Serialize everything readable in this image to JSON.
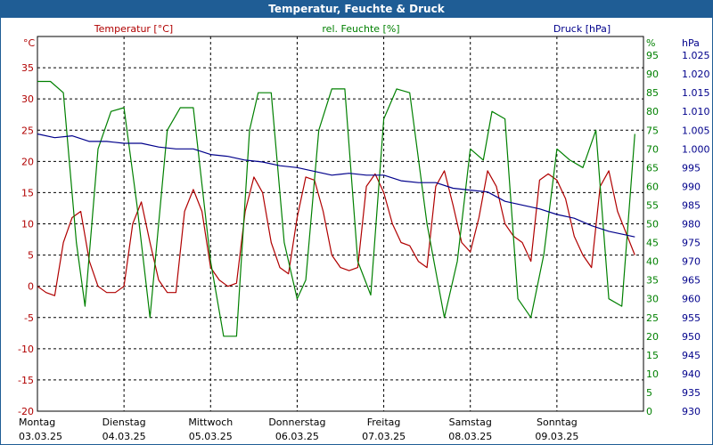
{
  "chart_data": {
    "type": "line",
    "title": "Temperatur, Feuchte & Druck",
    "grid": true,
    "legend": "top",
    "x_day_labels": [
      {
        "day": "Montag",
        "date": "03.03.25"
      },
      {
        "day": "Dienstag",
        "date": "04.03.25"
      },
      {
        "day": "Mittwoch",
        "date": "05.03.25"
      },
      {
        "day": "Donnerstag",
        "date": "06.03.25"
      },
      {
        "day": "Freitag",
        "date": "07.03.25"
      },
      {
        "day": "Samstag",
        "date": "08.03.25"
      },
      {
        "day": "Sonntag",
        "date": "09.03.25"
      }
    ],
    "axes": {
      "temperature": {
        "label": "Temperatur [°C]",
        "unit": "°C",
        "color": "#b00000",
        "ylim": [
          -20,
          40
        ],
        "ticks": [
          "-20",
          "-15",
          "-10",
          "-5",
          "0",
          "5",
          "10",
          "15",
          "20",
          "25",
          "30",
          "35"
        ]
      },
      "humidity": {
        "label": "rel. Feuchte [%]",
        "unit": "%",
        "color": "#008000",
        "ylim": [
          0,
          100
        ],
        "ticks": [
          "0",
          "5",
          "10",
          "15",
          "20",
          "25",
          "30",
          "35",
          "40",
          "45",
          "50",
          "55",
          "60",
          "65",
          "70",
          "75",
          "80",
          "85",
          "90",
          "95"
        ]
      },
      "pressure": {
        "label": "Druck [hPa]",
        "unit": "hPa",
        "color": "#00008b",
        "ylim": [
          930,
          1030
        ],
        "ticks": [
          "930",
          "935",
          "940",
          "945",
          "950",
          "955",
          "960",
          "965",
          "970",
          "975",
          "980",
          "985",
          "990",
          "995",
          "1.000",
          "1.005",
          "1.010",
          "1.015",
          "1.020",
          "1.025"
        ]
      }
    },
    "series": [
      {
        "name": "Temperatur [°C]",
        "axis": "temperature",
        "color": "#b00000",
        "x": [
          0,
          0.1,
          0.2,
          0.3,
          0.4,
          0.5,
          0.6,
          0.7,
          0.8,
          0.9,
          1,
          1.1,
          1.2,
          1.3,
          1.4,
          1.5,
          1.6,
          1.7,
          1.8,
          1.9,
          2,
          2.1,
          2.2,
          2.3,
          2.4,
          2.5,
          2.6,
          2.7,
          2.8,
          2.9,
          3,
          3.1,
          3.2,
          3.3,
          3.4,
          3.5,
          3.6,
          3.7,
          3.8,
          3.9,
          4,
          4.1,
          4.2,
          4.3,
          4.4,
          4.5,
          4.6,
          4.7,
          4.8,
          4.9,
          5,
          5.1,
          5.2,
          5.3,
          5.4,
          5.5,
          5.6,
          5.7,
          5.8,
          5.9,
          6,
          6.1,
          6.2,
          6.3,
          6.4,
          6.5,
          6.6,
          6.7,
          6.9
        ],
        "values": [
          0,
          -1,
          -1.5,
          7,
          11,
          12,
          4,
          0,
          -1,
          -1,
          0,
          10,
          13.5,
          7,
          1,
          -1,
          -1,
          12,
          15.5,
          12,
          3,
          1,
          0,
          0.5,
          12,
          17.5,
          15,
          7,
          3,
          2,
          11,
          17.5,
          17,
          12,
          5,
          3,
          2.5,
          3,
          16,
          18,
          15,
          10,
          7,
          6.5,
          4,
          3,
          16,
          18.5,
          13,
          7,
          5.5,
          11,
          18.5,
          16,
          10,
          8,
          7,
          4,
          17,
          18,
          17,
          14,
          8,
          5,
          3,
          16,
          18.5,
          12,
          5
        ]
      },
      {
        "name": "rel. Feuchte [%]",
        "axis": "humidity",
        "color": "#008000",
        "x": [
          0,
          0.15,
          0.3,
          0.45,
          0.55,
          0.7,
          0.85,
          1,
          1.15,
          1.3,
          1.5,
          1.65,
          1.8,
          2,
          2.15,
          2.3,
          2.45,
          2.55,
          2.7,
          2.85,
          3,
          3.1,
          3.25,
          3.4,
          3.55,
          3.7,
          3.85,
          4,
          4.15,
          4.3,
          4.5,
          4.7,
          4.85,
          5,
          5.15,
          5.25,
          5.4,
          5.55,
          5.7,
          5.85,
          6,
          6.15,
          6.3,
          6.45,
          6.6,
          6.75,
          6.9
        ],
        "values": [
          88,
          88,
          85,
          45,
          28,
          70,
          80,
          81,
          55,
          25,
          75,
          81,
          81,
          40,
          20,
          20,
          75,
          85,
          85,
          45,
          30,
          35,
          75,
          86,
          86,
          40,
          31,
          78,
          86,
          85,
          50,
          25,
          40,
          70,
          67,
          80,
          78,
          30,
          25,
          42,
          70,
          67,
          65,
          75,
          30,
          28,
          74
        ]
      },
      {
        "name": "Druck [hPa]",
        "axis": "pressure",
        "color": "#00008b",
        "x": [
          0,
          0.2,
          0.4,
          0.6,
          0.8,
          1,
          1.2,
          1.4,
          1.6,
          1.8,
          2,
          2.2,
          2.4,
          2.6,
          2.8,
          3,
          3.2,
          3.4,
          3.6,
          3.8,
          4,
          4.2,
          4.4,
          4.6,
          4.8,
          5,
          5.2,
          5.4,
          5.6,
          5.8,
          6,
          6.2,
          6.4,
          6.6,
          6.8,
          6.9
        ],
        "values": [
          1004,
          1003,
          1003.5,
          1002,
          1002,
          1001.5,
          1001.5,
          1000.5,
          1000,
          1000,
          998.5,
          998,
          997,
          996.5,
          995.5,
          995,
          994,
          993,
          993.5,
          993,
          993,
          991.5,
          991,
          991,
          989.5,
          989,
          988.5,
          986,
          985,
          984,
          982.5,
          981.5,
          979.5,
          978,
          977,
          976.5
        ]
      }
    ]
  }
}
